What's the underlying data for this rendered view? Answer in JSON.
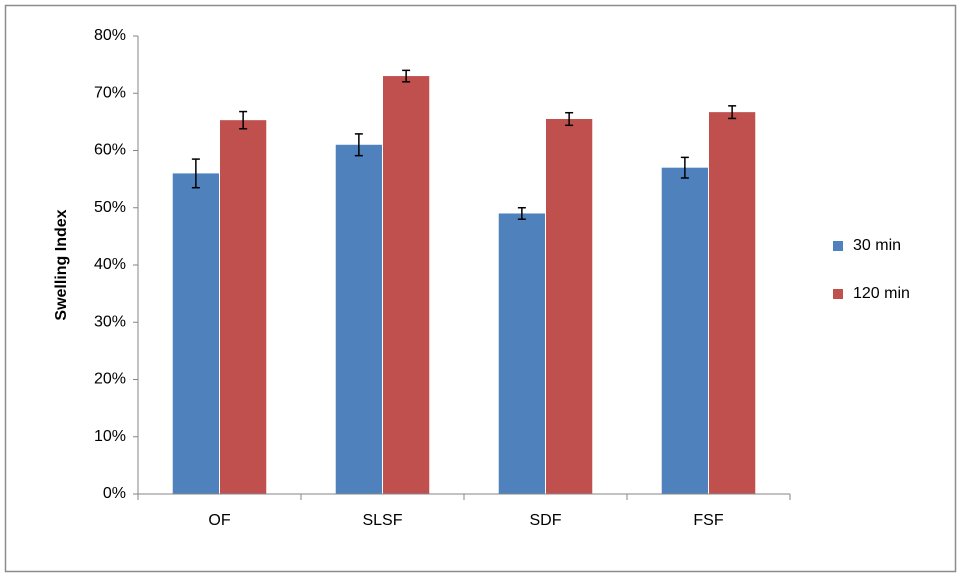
{
  "chart_data": {
    "type": "bar",
    "y_label": "Swelling Index",
    "categories": [
      "OF",
      "SLSF",
      "SDF",
      "FSF"
    ],
    "series": [
      {
        "name": "30 min",
        "color": "#4f81bd",
        "values": [
          56,
          61,
          49,
          57
        ],
        "errors": [
          2.5,
          1.9,
          1,
          1.8
        ]
      },
      {
        "name": "120 min",
        "color": "#c0504d",
        "values": [
          65.3,
          73,
          65.5,
          66.7
        ],
        "errors": [
          1.5,
          1,
          1.1,
          1.1
        ]
      }
    ],
    "ylim": [
      0,
      80
    ],
    "yticks": [
      {
        "value": 0,
        "label": "0%"
      },
      {
        "value": 10,
        "label": "10%"
      },
      {
        "value": 20,
        "label": "20%"
      },
      {
        "value": 30,
        "label": "30%"
      },
      {
        "value": 40,
        "label": "40%"
      },
      {
        "value": 50,
        "label": "50%"
      },
      {
        "value": 60,
        "label": "60%"
      },
      {
        "value": 70,
        "label": "70%"
      },
      {
        "value": 80,
        "label": "80%"
      }
    ],
    "legend": "right",
    "grid": false
  }
}
